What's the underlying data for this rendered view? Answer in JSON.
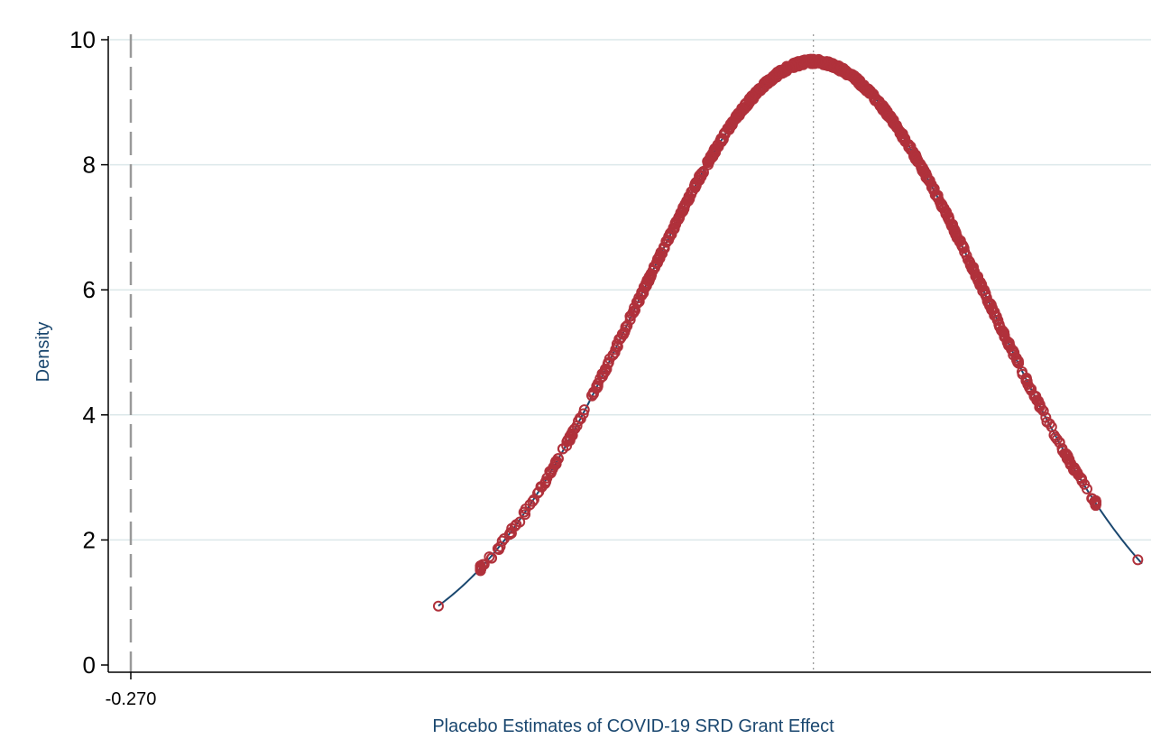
{
  "chart_data": {
    "type": "scatter",
    "title": "",
    "xlabel": "Placebo Estimates of COVID-19 SRD Grant Effect",
    "ylabel": "Density",
    "y_ticks": [
      0,
      2,
      4,
      6,
      8,
      10
    ],
    "x_ticks": [
      "-0.270"
    ],
    "ylim": [
      0,
      10
    ],
    "xlim": [
      -0.27,
      -0.03
    ],
    "grid": "horizontal",
    "legend": "none",
    "reference_lines": [
      {
        "name": "",
        "x": -0.27,
        "style": "dashed",
        "color": "#999999"
      },
      {
        "name": "",
        "x": -0.108,
        "style": "dotted",
        "color": "#999999"
      }
    ],
    "series": [
      {
        "name": "",
        "kind": "kernel-density-line",
        "color": "#1a476f",
        "x_range": [
          -0.197,
          -0.03
        ],
        "mean": -0.108,
        "sd": 0.0413,
        "peak_density": 9.65
      },
      {
        "name": "",
        "kind": "placebo-estimate-markers",
        "color": "#b0313b",
        "marker": "hollow-circle",
        "count": 1000,
        "x_range": [
          -0.197,
          -0.031
        ],
        "mean": -0.108,
        "sd": 0.0413
      }
    ],
    "colors": {
      "density_line": "#1a476f",
      "markers": "#b0313b",
      "grid": "#dce8ea",
      "axis": "#000000",
      "axis_title": "#1a476f"
    }
  }
}
